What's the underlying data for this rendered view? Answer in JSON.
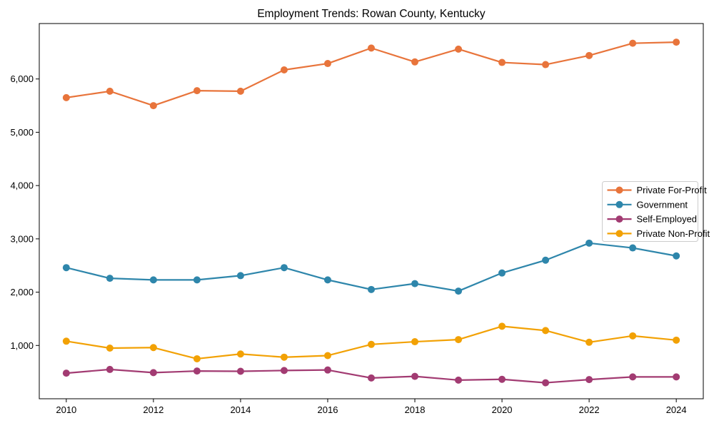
{
  "chart_data": {
    "type": "line",
    "title": "Employment Trends: Rowan County, Kentucky",
    "xlabel": "",
    "ylabel": "",
    "grid": false,
    "legend_position": "center right",
    "background_color": "#ffffff",
    "axes_color": "#000000",
    "x": [
      2010,
      2011,
      2012,
      2013,
      2014,
      2015,
      2016,
      2017,
      2018,
      2019,
      2020,
      2021,
      2022,
      2023,
      2024
    ],
    "x_ticks": [
      2010,
      2012,
      2014,
      2016,
      2018,
      2020,
      2022,
      2024
    ],
    "x_tick_labels": [
      "2010",
      "2012",
      "2014",
      "2016",
      "2018",
      "2020",
      "2022",
      "2024"
    ],
    "y_ticks": [
      1000,
      2000,
      3000,
      4000,
      5000,
      6000
    ],
    "y_tick_labels": [
      "1,000",
      "2,000",
      "3,000",
      "4,000",
      "5,000",
      "6,000"
    ],
    "xlim": [
      2009.38,
      2024.62
    ],
    "ylim": [
      0,
      7040
    ],
    "series": [
      {
        "name": "Private For-Profit",
        "color": "#E8743B",
        "values": [
          5650,
          5770,
          5500,
          5780,
          5770,
          6170,
          6290,
          6580,
          6320,
          6560,
          6310,
          6270,
          6440,
          6670,
          6690
        ]
      },
      {
        "name": "Government",
        "color": "#2E86AB",
        "values": [
          2460,
          2260,
          2230,
          2230,
          2310,
          2460,
          2230,
          2050,
          2160,
          2020,
          2360,
          2600,
          2920,
          2830,
          2680
        ]
      },
      {
        "name": "Self-Employed",
        "color": "#A23B72",
        "values": [
          480,
          550,
          490,
          520,
          515,
          530,
          540,
          390,
          420,
          350,
          365,
          300,
          360,
          410,
          410
        ]
      },
      {
        "name": "Private Non-Profit",
        "color": "#F2A104",
        "values": [
          1080,
          950,
          960,
          750,
          840,
          780,
          810,
          1020,
          1070,
          1110,
          1360,
          1280,
          1060,
          1180,
          1100
        ]
      }
    ]
  }
}
